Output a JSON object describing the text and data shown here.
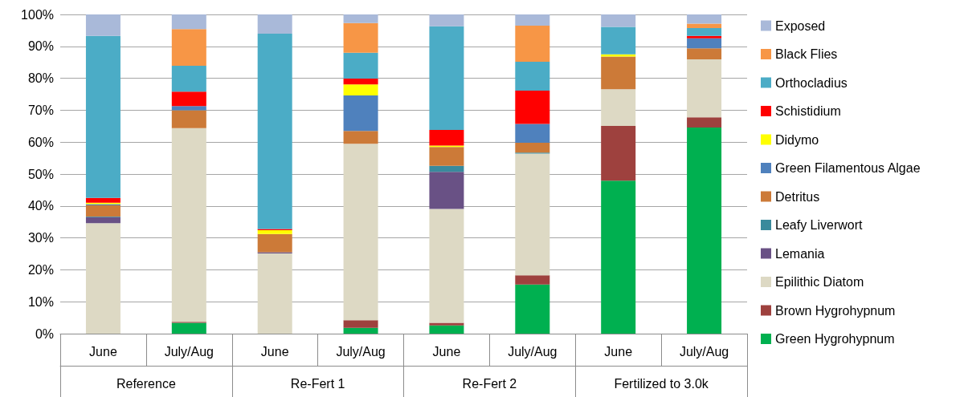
{
  "chart_data": {
    "type": "bar",
    "stacked": true,
    "categories": [
      "June",
      "July/Aug",
      "June",
      "July/Aug",
      "June",
      "July/Aug",
      "June",
      "July/Aug"
    ],
    "annotations": [
      "Reference",
      "Re-Fert 1",
      "Re-Fert 2",
      "Fertilized to 3.0k"
    ],
    "series": [
      {
        "name": "Green Hygrohypnum",
        "color": "#00b050",
        "values": [
          0,
          3.4,
          0,
          1.8,
          2.6,
          15.4,
          47.9,
          64.6
        ]
      },
      {
        "name": "Brown Hygrohypnum",
        "color": "#9e413e",
        "values": [
          0,
          0.3,
          0,
          2.4,
          0.8,
          2.9,
          17.2,
          3.2
        ]
      },
      {
        "name": "Epilithic Diatom",
        "color": "#ddd9c4",
        "values": [
          34.6,
          60.7,
          25.1,
          55.3,
          35.7,
          38.1,
          11.5,
          18.1
        ]
      },
      {
        "name": "Lemania",
        "color": "#695185",
        "values": [
          1.9,
          0,
          0.4,
          0,
          11.6,
          0,
          0,
          0
        ]
      },
      {
        "name": "Leafy Liverwort",
        "color": "#3a8a9c",
        "values": [
          0.2,
          0,
          0,
          0,
          1.9,
          0.3,
          0,
          0
        ]
      },
      {
        "name": "Detritus",
        "color": "#cc7a38",
        "values": [
          3.5,
          5.6,
          5.7,
          4.0,
          5.9,
          3.1,
          10.2,
          3.5
        ]
      },
      {
        "name": "Green Filamentous Algae",
        "color": "#4f81bd",
        "values": [
          0.4,
          1.3,
          0,
          11.1,
          0,
          5.9,
          0,
          3.1
        ]
      },
      {
        "name": "Didymo",
        "color": "#ffff00",
        "values": [
          0.4,
          0,
          1.2,
          3.5,
          0.4,
          0,
          0.7,
          0
        ]
      },
      {
        "name": "Schistidium",
        "color": "#ff0000",
        "values": [
          1.5,
          4.5,
          0.4,
          1.8,
          4.9,
          10.4,
          0,
          0.8
        ]
      },
      {
        "name": "Orthocladius",
        "color": "#4bacc6",
        "values": [
          50.8,
          8.1,
          61.2,
          8.1,
          32.5,
          9.1,
          8.6,
          2.4
        ]
      },
      {
        "name": "Black Flies",
        "color": "#f79646",
        "values": [
          0,
          11.5,
          0,
          9.3,
          0,
          11.3,
          0,
          1.4
        ]
      },
      {
        "name": "Exposed",
        "color": "#a9b9d9",
        "values": [
          6.7,
          4.7,
          6.0,
          2.7,
          3.7,
          3.5,
          3.9,
          2.9
        ]
      }
    ],
    "ylim": [
      0,
      100
    ],
    "yticks": [
      {
        "value": 0,
        "label": "0%"
      },
      {
        "value": 10,
        "label": "10%"
      },
      {
        "value": 20,
        "label": "20%"
      },
      {
        "value": 30,
        "label": "30%"
      },
      {
        "value": 40,
        "label": "40%"
      },
      {
        "value": 50,
        "label": "50%"
      },
      {
        "value": 60,
        "label": "60%"
      },
      {
        "value": 70,
        "label": "70%"
      },
      {
        "value": 80,
        "label": "80%"
      },
      {
        "value": 90,
        "label": "90%"
      },
      {
        "value": 100,
        "label": "100%"
      }
    ],
    "grid": "y",
    "legend": "right"
  }
}
